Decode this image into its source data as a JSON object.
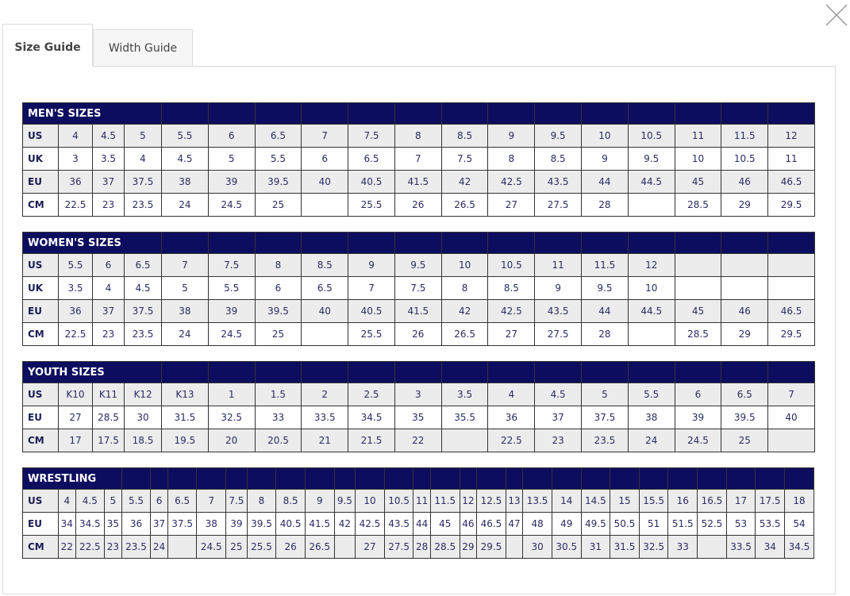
{
  "tabs": [
    "Size Guide",
    "Width Guide"
  ],
  "tables": [
    {
      "title": "MEN'S SIZES",
      "rows": [
        {
          "label": "US",
          "cells": [
            "4",
            "4.5",
            "5",
            "5.5",
            "6",
            "6.5",
            "7",
            "7.5",
            "8",
            "8.5",
            "9",
            "9.5",
            "10",
            "10.5",
            "11",
            "11.5",
            "12"
          ]
        },
        {
          "label": "UK",
          "cells": [
            "3",
            "3.5",
            "4",
            "4.5",
            "5",
            "5.5",
            "6",
            "6.5",
            "7",
            "7.5",
            "8",
            "8.5",
            "9",
            "9.5",
            "10",
            "10.5",
            "11"
          ]
        },
        {
          "label": "EU",
          "cells": [
            "36",
            "37",
            "37.5",
            "38",
            "39",
            "39.5",
            "40",
            "40.5",
            "41.5",
            "42",
            "42.5",
            "43.5",
            "44",
            "44.5",
            "45",
            "46",
            "46.5"
          ]
        },
        {
          "label": "CM",
          "cells": [
            "22.5",
            "23",
            "23.5",
            "24",
            "24.5",
            "25",
            null,
            "25.5",
            "26",
            "26.5",
            "27",
            "27.5",
            "28",
            null,
            "28.5",
            "29",
            "29.5"
          ]
        }
      ]
    },
    {
      "title": "WOMEN'S SIZES",
      "rows": [
        {
          "label": "US",
          "cells": [
            "5.5",
            "6",
            "6.5",
            "7",
            "7.5",
            "8",
            "8.5",
            "9",
            "9.5",
            "10",
            "10.5",
            "11",
            "11.5",
            "12",
            null,
            null,
            null
          ]
        },
        {
          "label": "UK",
          "cells": [
            "3.5",
            "4",
            "4.5",
            "5",
            "5.5",
            "6",
            "6.5",
            "7",
            "7.5",
            "8",
            "8.5",
            "9",
            "9.5",
            "10",
            null,
            null,
            null
          ]
        },
        {
          "label": "EU",
          "cells": [
            "36",
            "37",
            "37.5",
            "38",
            "39",
            "39.5",
            "40",
            "40.5",
            "41.5",
            "42",
            "42.5",
            "43.5",
            "44",
            "44.5",
            "45",
            "46",
            "46.5"
          ]
        },
        {
          "label": "CM",
          "cells": [
            "22.5",
            "23",
            "23.5",
            "24",
            "24.5",
            "25",
            null,
            "25.5",
            "26",
            "26.5",
            "27",
            "27.5",
            "28",
            null,
            "28.5",
            "29",
            "29.5"
          ]
        }
      ]
    },
    {
      "title": "YOUTH SIZES",
      "rows": [
        {
          "label": "US",
          "cells": [
            "K10",
            "K11",
            "K12",
            "K13",
            "1",
            "1.5",
            "2",
            "2.5",
            "3",
            "3.5",
            "4",
            "4.5",
            "5",
            "5.5",
            "6",
            "6.5",
            "7"
          ]
        },
        {
          "label": "EU",
          "cells": [
            "27",
            "28.5",
            "30",
            "31.5",
            "32.5",
            "33",
            "33.5",
            "34.5",
            "35",
            "35.5",
            "36",
            "37",
            "37.5",
            "38",
            "39",
            "39.5",
            "40"
          ]
        },
        {
          "label": "CM",
          "cells": [
            "17",
            "17.5",
            "18.5",
            "19.5",
            "20",
            "20.5",
            "21",
            "21.5",
            "22",
            null,
            "22.5",
            "23",
            "23.5",
            "24",
            "24.5",
            "25",
            null
          ]
        }
      ]
    },
    {
      "title": "WRESTLING",
      "rows": [
        {
          "label": "US",
          "cells": [
            "4",
            "4.5",
            "5",
            "5.5",
            "6",
            "6.5",
            "7",
            "7.5",
            "8",
            "8.5",
            "9",
            "9.5",
            "10",
            "10.5",
            "11",
            "11.5",
            "12",
            "12.5",
            "13",
            "13.5",
            "14",
            "14.5",
            "15",
            "15.5",
            "16",
            "16.5",
            "17",
            "17.5",
            "18"
          ]
        },
        {
          "label": "EU",
          "cells": [
            "34",
            "34.5",
            "35",
            "36",
            "37",
            "37.5",
            "38",
            "39",
            "39.5",
            "40.5",
            "41.5",
            "42",
            "42.5",
            "43.5",
            "44",
            "45",
            "46",
            "46.5",
            "47",
            "48",
            "49",
            "49.5",
            "50.5",
            "51",
            "51.5",
            "52.5",
            "53",
            "53.5",
            "54"
          ]
        },
        {
          "label": "CM",
          "cells": [
            "22",
            "22.5",
            "23",
            "23.5",
            "24",
            null,
            "24.5",
            "25",
            "25.5",
            "26",
            "26.5",
            null,
            "27",
            "27.5",
            "28",
            "28.5",
            "29",
            "29.5",
            null,
            "30",
            "30.5",
            "31",
            "31.5",
            "32.5",
            "33",
            null,
            "33.5",
            "34",
            "34.5"
          ]
        }
      ]
    }
  ]
}
